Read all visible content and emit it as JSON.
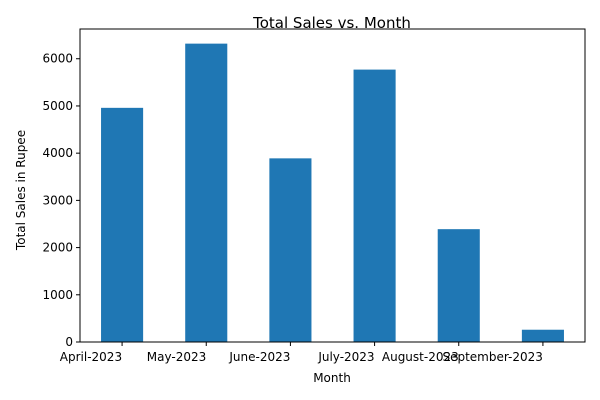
{
  "chart_data": {
    "type": "bar",
    "title": "Total Sales vs. Month",
    "xlabel": "Month",
    "ylabel": "Total Sales in Rupee",
    "categories": [
      "April-2023",
      "May-2023",
      "June-2023",
      "July-2023",
      "August-2023",
      "September-2023"
    ],
    "values": [
      4960,
      6320,
      3890,
      5770,
      2390,
      260
    ],
    "ylim": [
      0,
      6630
    ],
    "yticks": [
      0,
      1000,
      2000,
      3000,
      4000,
      5000,
      6000
    ],
    "grid": false,
    "bar_color": "#1f77b4"
  }
}
